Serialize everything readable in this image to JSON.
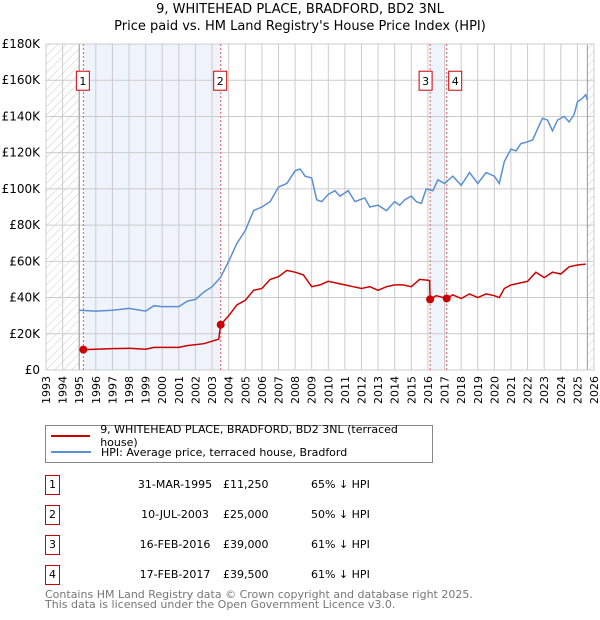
{
  "title": "9, WHITEHEAD PLACE, BRADFORD, BD2 3NL",
  "subtitle": "Price paid vs. HM Land Registry's House Price Index (HPI)",
  "chart_data": {
    "type": "line",
    "title": "9, WHITEHEAD PLACE, BRADFORD, BD2 3NL",
    "subtitle": "Price paid vs. HM Land Registry's House Price Index (HPI)",
    "xlim": [
      1993,
      2026
    ],
    "ylim": [
      0,
      180000
    ],
    "x_ticks": [
      "1993",
      "1994",
      "1995",
      "1996",
      "1997",
      "1998",
      "1999",
      "2000",
      "2001",
      "2002",
      "2003",
      "2004",
      "2005",
      "2006",
      "2007",
      "2008",
      "2009",
      "2010",
      "2011",
      "2012",
      "2013",
      "2014",
      "2015",
      "2016",
      "2017",
      "2018",
      "2019",
      "2020",
      "2021",
      "2022",
      "2023",
      "2024",
      "2025",
      "2026"
    ],
    "y_ticks": [
      {
        "v": 0,
        "label": "£0"
      },
      {
        "v": 20000,
        "label": "£20K"
      },
      {
        "v": 40000,
        "label": "£40K"
      },
      {
        "v": 60000,
        "label": "£60K"
      },
      {
        "v": 80000,
        "label": "£80K"
      },
      {
        "v": 100000,
        "label": "£100K"
      },
      {
        "v": 120000,
        "label": "£120K"
      },
      {
        "v": 140000,
        "label": "£140K"
      },
      {
        "v": 160000,
        "label": "£160K"
      },
      {
        "v": 180000,
        "label": "£180K"
      }
    ],
    "grid": true,
    "hatched_ranges": [
      [
        1993,
        1995.0
      ],
      [
        2025.6,
        2026
      ]
    ],
    "shaded_ranges": [
      [
        1995.25,
        2003.52
      ],
      [
        2016.13,
        2017.13
      ]
    ],
    "series": [
      {
        "name": "9, WHITEHEAD PLACE, BRADFORD, BD2 3NL (terraced house)",
        "color": "#cc0000",
        "x": [
          1995.25,
          1996,
          1997,
          1998,
          1999,
          1999.5,
          2001,
          2001.5,
          2002.5,
          2003.4,
          2003.52,
          2004,
          2004.5,
          2005,
          2005.5,
          2006,
          2006.5,
          2007,
          2007.5,
          2008,
          2008.5,
          2009,
          2009.5,
          2010,
          2010.5,
          2011,
          2011.5,
          2012,
          2012.5,
          2013,
          2013.5,
          2014,
          2014.5,
          2015,
          2015.5,
          2016.1,
          2016.13,
          2016.5,
          2017.13,
          2017.5,
          2018,
          2018.5,
          2019,
          2019.5,
          2020,
          2020.3,
          2020.6,
          2021,
          2021.5,
          2022,
          2022.5,
          2023,
          2023.5,
          2024,
          2024.5,
          2025,
          2025.5
        ],
        "y": [
          11250,
          11500,
          11800,
          12000,
          11500,
          12500,
          12500,
          13500,
          14500,
          17000,
          25000,
          30000,
          36000,
          38500,
          44000,
          45000,
          50000,
          51500,
          55000,
          54000,
          52500,
          46000,
          47000,
          49000,
          48000,
          47000,
          46000,
          45000,
          46000,
          44000,
          46000,
          47000,
          47000,
          46000,
          50000,
          49500,
          39000,
          41000,
          39500,
          41500,
          39500,
          42000,
          40000,
          42000,
          41000,
          40000,
          45000,
          47000,
          48000,
          49000,
          54000,
          51000,
          54000,
          53000,
          57000,
          58000,
          58500
        ]
      },
      {
        "name": "HPI: Average price, terraced house, Bradford",
        "color": "#5b8fd4",
        "x": [
          1995,
          1996,
          1997,
          1998,
          1999,
          1999.5,
          2000,
          2001,
          2001.5,
          2002,
          2002.5,
          2003,
          2003.5,
          2004,
          2004.5,
          2005,
          2005.5,
          2006,
          2006.5,
          2007,
          2007.5,
          2008,
          2008.3,
          2008.6,
          2009,
          2009.3,
          2009.6,
          2010,
          2010.4,
          2010.7,
          2011.2,
          2011.6,
          2012.2,
          2012.5,
          2013,
          2013.5,
          2014,
          2014.3,
          2014.6,
          2015,
          2015.3,
          2015.6,
          2015.9,
          2016.3,
          2016.6,
          2017,
          2017.5,
          2018,
          2018.5,
          2019,
          2019.5,
          2020,
          2020.3,
          2020.6,
          2021,
          2021.3,
          2021.6,
          2022,
          2022.3,
          2022.6,
          2022.9,
          2023.2,
          2023.5,
          2023.8,
          2024.2,
          2024.5,
          2024.8,
          2025,
          2025.3,
          2025.5,
          2025.6
        ],
        "y": [
          33000,
          32500,
          33000,
          34000,
          32500,
          35500,
          35000,
          35000,
          38000,
          39000,
          43000,
          46000,
          51000,
          60000,
          70000,
          77000,
          88000,
          90000,
          93000,
          101000,
          103000,
          110000,
          111000,
          107000,
          106000,
          94000,
          93000,
          97000,
          99000,
          96000,
          99000,
          93000,
          95000,
          90000,
          91000,
          88000,
          93000,
          91000,
          94000,
          96000,
          93000,
          92000,
          100000,
          99000,
          105000,
          103000,
          107000,
          102000,
          109000,
          103000,
          109000,
          107000,
          103000,
          115000,
          122000,
          121000,
          125000,
          126000,
          127000,
          133000,
          139000,
          138000,
          132000,
          138000,
          140000,
          137000,
          141000,
          148000,
          150000,
          152000,
          149000
        ]
      }
    ],
    "sales": [
      {
        "n": "1",
        "x": 1995.25,
        "y": 11250
      },
      {
        "n": "2",
        "x": 2003.52,
        "y": 25000
      },
      {
        "n": "3",
        "x": 2016.13,
        "y": 39000
      },
      {
        "n": "4",
        "x": 2017.13,
        "y": 39500
      }
    ],
    "legend": "bottom"
  },
  "legend": {
    "property": "9, WHITEHEAD PLACE, BRADFORD, BD2 3NL (terraced house)",
    "hpi": "HPI: Average price, terraced house, Bradford"
  },
  "table": [
    {
      "n": "1",
      "date": "31-MAR-1995",
      "price": "£11,250",
      "hpi": "65% ↓ HPI"
    },
    {
      "n": "2",
      "date": "10-JUL-2003",
      "price": "£25,000",
      "hpi": "50% ↓ HPI"
    },
    {
      "n": "3",
      "date": "16-FEB-2016",
      "price": "£39,000",
      "hpi": "61% ↓ HPI"
    },
    {
      "n": "4",
      "date": "17-FEB-2017",
      "price": "£39,500",
      "hpi": "61% ↓ HPI"
    }
  ],
  "footer": {
    "line1": "Contains HM Land Registry data © Crown copyright and database right 2025.",
    "line2": "This data is licensed under the Open Government Licence v3.0."
  }
}
